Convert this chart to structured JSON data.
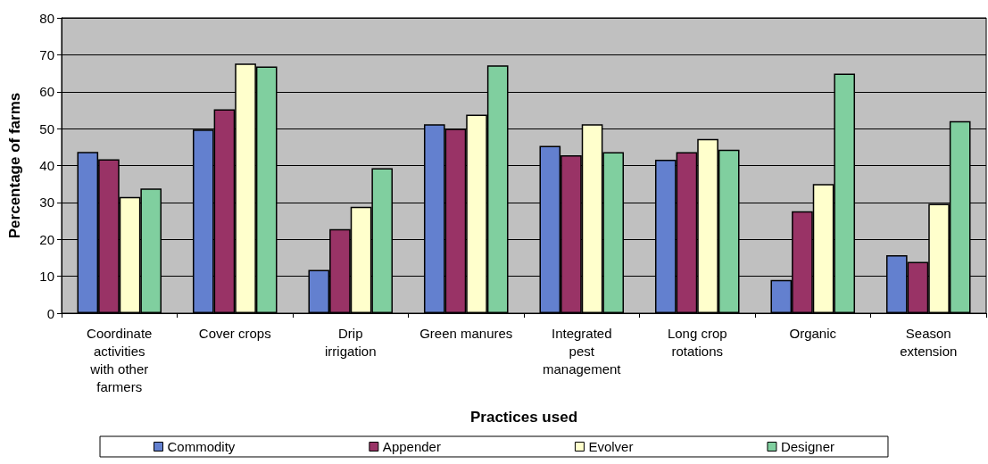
{
  "chart_data": {
    "type": "bar",
    "xlabel": "Practices used",
    "ylabel": "Percentage of farms",
    "categories": [
      "Coordinate activities with other farmers",
      "Cover crops",
      "Drip irrigation",
      "Green manures",
      "Integrated pest management",
      "Long crop rotations",
      "Organic",
      "Season extension"
    ],
    "series": [
      {
        "name": "Commodity",
        "color": "#6380cf",
        "values": [
          43.7,
          49.7,
          11.7,
          51.2,
          45.3,
          41.6,
          9,
          15.7
        ]
      },
      {
        "name": "Appender",
        "color": "#993366",
        "values": [
          41.7,
          55.2,
          22.8,
          50,
          42.8,
          43.6,
          27.6,
          13.9
        ]
      },
      {
        "name": "Evolver",
        "color": "#ffffcc",
        "values": [
          31.5,
          67.6,
          28.8,
          53.8,
          51.2,
          47.2,
          35,
          29.6
        ]
      },
      {
        "name": "Designer",
        "color": "#80cf9f",
        "values": [
          33.8,
          66.8,
          39.3,
          67.1,
          43.6,
          44.3,
          64.9,
          52
        ]
      }
    ],
    "ylim": [
      0,
      80
    ],
    "yticks": [
      0,
      10,
      20,
      30,
      40,
      50,
      60,
      70,
      80
    ],
    "grid": "y",
    "legend": "bottom"
  }
}
